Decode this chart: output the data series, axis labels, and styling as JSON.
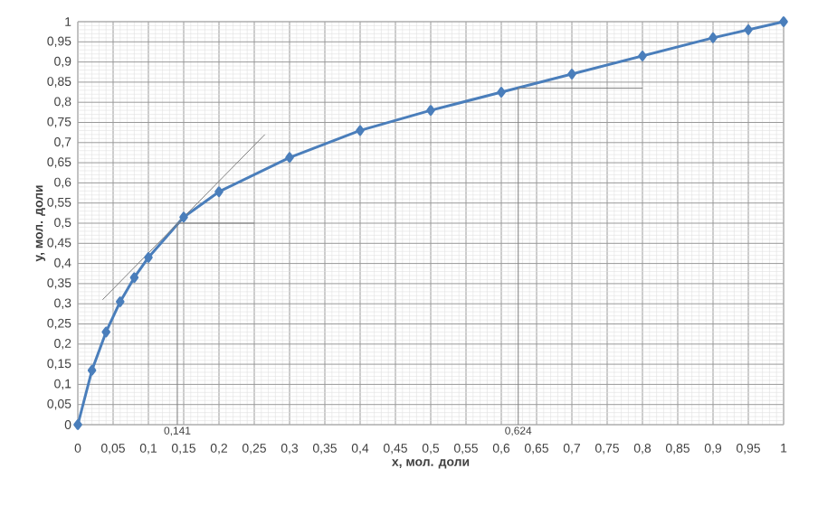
{
  "chart_data": {
    "type": "line",
    "xlabel": "x, мол. доли",
    "ylabel": "y, мол. доли",
    "x": [
      0,
      0.02,
      0.04,
      0.06,
      0.08,
      0.1,
      0.15,
      0.2,
      0.3,
      0.4,
      0.5,
      0.6,
      0.7,
      0.8,
      0.9,
      0.95,
      1
    ],
    "series": [
      {
        "color": "#4a7ebb",
        "marker": "diamond",
        "values": [
          0,
          0.135,
          0.23,
          0.305,
          0.365,
          0.415,
          0.515,
          0.578,
          0.663,
          0.73,
          0.78,
          0.825,
          0.87,
          0.915,
          0.96,
          0.98,
          1
        ]
      },
      {
        "color": "#7f7f7f",
        "marker": "none",
        "x": [
          0.035,
          0.265
        ],
        "values": [
          0.31,
          0.72
        ]
      },
      {
        "color": "#7f7f7f",
        "marker": "none",
        "x": [
          0.141,
          0.141,
          0.25
        ],
        "values": [
          0,
          0.5,
          0.5
        ]
      },
      {
        "color": "#7f7f7f",
        "marker": "none",
        "x": [
          0.624,
          0.624,
          0.8
        ],
        "values": [
          0,
          0.835,
          0.835
        ]
      }
    ],
    "annotations": [
      {
        "text": "0,141",
        "x": 0.141,
        "y": 0
      },
      {
        "text": "0,624",
        "x": 0.624,
        "y": 0
      }
    ],
    "xlim": [
      0,
      1
    ],
    "ylim": [
      0,
      1
    ],
    "xticks": [
      0,
      {
        "value": 0.05,
        "label": "0,05"
      },
      {
        "value": 0.1,
        "label": "0,1"
      },
      {
        "value": 0.15,
        "label": "0,15"
      },
      {
        "value": 0.2,
        "label": "0,2"
      },
      {
        "value": 0.25,
        "label": "0,25"
      },
      {
        "value": 0.3,
        "label": "0,3"
      },
      {
        "value": 0.35,
        "label": "0,35"
      },
      {
        "value": 0.4,
        "label": "0,4"
      },
      {
        "value": 0.45,
        "label": "0,45"
      },
      {
        "value": 0.5,
        "label": "0,5"
      },
      {
        "value": 0.55,
        "label": "0,55"
      },
      {
        "value": 0.6,
        "label": "0,6"
      },
      {
        "value": 0.65,
        "label": "0,65"
      },
      {
        "value": 0.7,
        "label": "0,7"
      },
      {
        "value": 0.75,
        "label": "0,75"
      },
      {
        "value": 0.8,
        "label": "0,8"
      },
      {
        "value": 0.85,
        "label": "0,85"
      },
      {
        "value": 0.9,
        "label": "0,9"
      },
      {
        "value": 0.95,
        "label": "0,95"
      },
      1
    ],
    "yticks": [
      0,
      {
        "value": 0.05,
        "label": "0,05"
      },
      {
        "value": 0.1,
        "label": "0,1"
      },
      {
        "value": 0.15,
        "label": "0,15"
      },
      {
        "value": 0.2,
        "label": "0,2"
      },
      {
        "value": 0.25,
        "label": "0,25"
      },
      {
        "value": 0.3,
        "label": "0,3"
      },
      {
        "value": 0.35,
        "label": "0,35"
      },
      {
        "value": 0.4,
        "label": "0,4"
      },
      {
        "value": 0.45,
        "label": "0,45"
      },
      {
        "value": 0.5,
        "label": "0,5"
      },
      {
        "value": 0.55,
        "label": "0,55"
      },
      {
        "value": 0.6,
        "label": "0,6"
      },
      {
        "value": 0.65,
        "label": "0,65"
      },
      {
        "value": 0.7,
        "label": "0,7"
      },
      {
        "value": 0.75,
        "label": "0,75"
      },
      {
        "value": 0.8,
        "label": "0,8"
      },
      {
        "value": 0.85,
        "label": "0,85"
      },
      {
        "value": 0.9,
        "label": "0,9"
      },
      {
        "value": 0.95,
        "label": "0,95"
      },
      1
    ],
    "grid": true
  }
}
